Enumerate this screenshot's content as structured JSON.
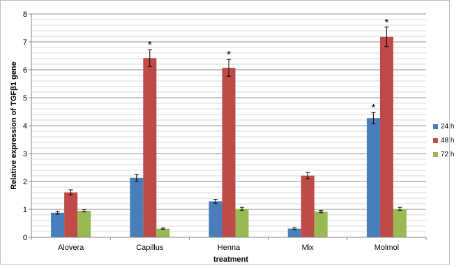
{
  "chart_data": {
    "type": "bar",
    "title": "",
    "xlabel": "treatment",
    "ylabel": "Relative expression of TGFβ1 gene",
    "ylim": [
      0,
      8
    ],
    "yticks": [
      "0",
      "1",
      "2",
      "3",
      "4",
      "5",
      "6",
      "7",
      "8"
    ],
    "grid": "horizontal minor lines every 0.2",
    "legend_position": "right (clipped)",
    "categories": [
      "Alovera",
      "Capillus",
      "Henna",
      "Mix",
      "Molmol"
    ],
    "series": [
      {
        "name": "24 h",
        "color": "#4a7ebb",
        "values": [
          0.88,
          2.13,
          1.29,
          0.31,
          4.27
        ],
        "errors": [
          0.05,
          0.12,
          0.07,
          0.03,
          0.2
        ],
        "significant": [
          false,
          false,
          false,
          false,
          true
        ]
      },
      {
        "name": "48 h",
        "color": "#be4b48",
        "values": [
          1.61,
          6.42,
          6.07,
          2.21,
          7.18
        ],
        "errors": [
          0.09,
          0.3,
          0.3,
          0.11,
          0.35
        ],
        "significant": [
          false,
          true,
          true,
          false,
          true
        ]
      },
      {
        "name": "72 h",
        "color": "#98b954",
        "values": [
          0.95,
          0.31,
          1.02,
          0.92,
          1.02
        ],
        "errors": [
          0.04,
          0.02,
          0.05,
          0.04,
          0.05
        ],
        "significant": [
          false,
          false,
          false,
          false,
          false
        ]
      }
    ],
    "annotation_symbol": "*"
  },
  "legend": {
    "items": [
      {
        "label": "24 h",
        "color": "#4a7ebb"
      },
      {
        "label": "48 h",
        "color": "#be4b48"
      },
      {
        "label": "72 h",
        "color": "#98b954"
      }
    ]
  }
}
